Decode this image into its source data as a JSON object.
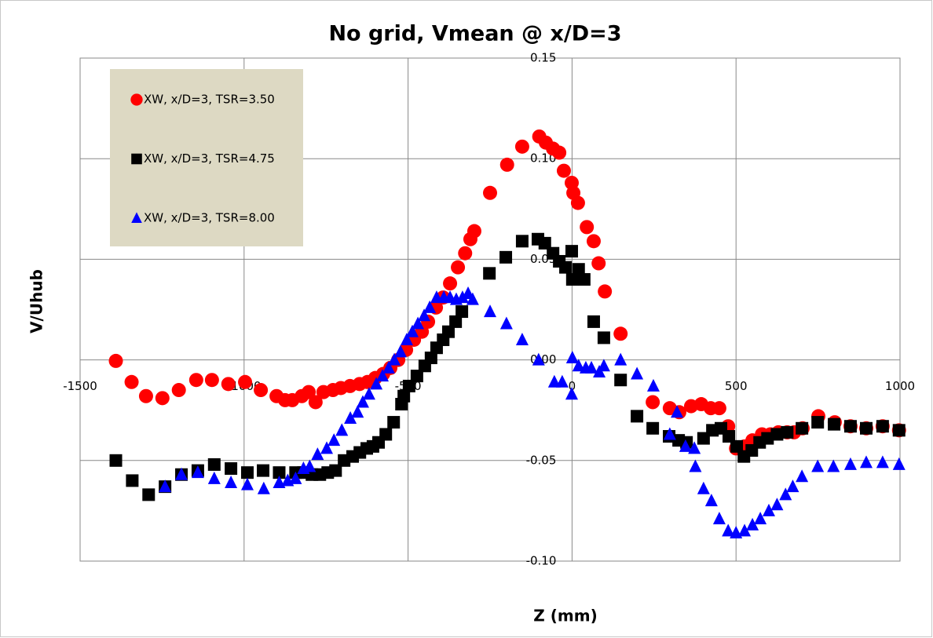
{
  "chart_data": {
    "type": "scatter",
    "title": "No grid, Vmean @ x/D=3",
    "x_label": "Z (mm)",
    "y_label": "V/Uhub",
    "xlim": [
      -1500,
      1000
    ],
    "xticks": [
      -1500,
      -1000,
      -500,
      0,
      500,
      1000
    ],
    "ylim": [
      -0.1,
      0.15
    ],
    "yticks": [
      {
        "value": -0.1,
        "label": "-0.10"
      },
      {
        "value": -0.05,
        "label": "-0.05"
      },
      {
        "value": 0,
        "label": "0.00"
      },
      {
        "value": 0.05,
        "label": "0.05"
      },
      {
        "value": 0.1,
        "label": "0.10"
      },
      0.15
    ],
    "grid": true,
    "legend": "upper left",
    "series": [
      {
        "name": "XW, x/D=3, TSR=3.50",
        "color": "#ff0000",
        "marker": "circle",
        "x": [
          -1391,
          -1343,
          -1299,
          -1249,
          -1199,
          -1146,
          -1098,
          -1048,
          -997,
          -949,
          -901,
          -875,
          -853,
          -824,
          -803,
          -782,
          -758,
          -729,
          -705,
          -677,
          -648,
          -624,
          -600,
          -576,
          -554,
          -530,
          -506,
          -482,
          -458,
          -439,
          -415,
          -393,
          -372,
          -348,
          -326,
          -310,
          -298,
          -250,
          -198,
          -152,
          -100,
          -80,
          -58,
          -39,
          -25,
          -1,
          4,
          18,
          45,
          66,
          81,
          100,
          148,
          246,
          298,
          327,
          363,
          394,
          423,
          449,
          476,
          500,
          526,
          550,
          579,
          605,
          629,
          656,
          677,
          703,
          751,
          801,
          849,
          897,
          947,
          997
        ],
        "values": [
          -0.0005,
          -0.011,
          -0.018,
          -0.019,
          -0.015,
          -0.01,
          -0.01,
          -0.012,
          -0.011,
          -0.015,
          -0.018,
          -0.02,
          -0.02,
          -0.018,
          -0.016,
          -0.021,
          -0.016,
          -0.015,
          -0.014,
          -0.013,
          -0.012,
          -0.011,
          -0.009,
          -0.007,
          -0.004,
          0,
          0.005,
          0.01,
          0.014,
          0.019,
          0.026,
          0.031,
          0.038,
          0.046,
          0.053,
          0.06,
          0.064,
          0.083,
          0.097,
          0.106,
          0.111,
          0.108,
          0.105,
          0.103,
          0.094,
          0.088,
          0.083,
          0.078,
          0.066,
          0.059,
          0.048,
          0.034,
          0.013,
          -0.021,
          -0.024,
          -0.026,
          -0.023,
          -0.022,
          -0.024,
          -0.024,
          -0.033,
          -0.044,
          -0.043,
          -0.04,
          -0.037,
          -0.037,
          -0.036,
          -0.036,
          -0.036,
          -0.034,
          -0.028,
          -0.031,
          -0.033,
          -0.034,
          -0.033,
          -0.035
        ]
      },
      {
        "name": "XW, x/D=3, TSR=4.75",
        "color": "#000000",
        "marker": "square",
        "x": [
          -1391,
          -1341,
          -1291,
          -1241,
          -1191,
          -1141,
          -1091,
          -1040,
          -990,
          -942,
          -893,
          -843,
          -819,
          -793,
          -769,
          -745,
          -721,
          -695,
          -669,
          -647,
          -626,
          -607,
          -590,
          -568,
          -544,
          -520,
          -513,
          -497,
          -473,
          -449,
          -430,
          -413,
          -393,
          -377,
          -355,
          -336,
          -252,
          -202,
          -152,
          -104,
          -83,
          -58,
          -39,
          -20,
          -1,
          1,
          20,
          37,
          66,
          97,
          148,
          198,
          246,
          296,
          325,
          349,
          401,
          428,
          454,
          478,
          502,
          524,
          548,
          572,
          596,
          625,
          656,
          701,
          749,
          799,
          849,
          897,
          947,
          997
        ],
        "values": [
          -0.05,
          -0.06,
          -0.067,
          -0.063,
          -0.057,
          -0.055,
          -0.052,
          -0.054,
          -0.056,
          -0.055,
          -0.056,
          -0.056,
          -0.056,
          -0.057,
          -0.057,
          -0.056,
          -0.055,
          -0.05,
          -0.048,
          -0.046,
          -0.044,
          -0.043,
          -0.041,
          -0.037,
          -0.031,
          -0.022,
          -0.018,
          -0.013,
          -0.008,
          -0.003,
          0.001,
          0.006,
          0.01,
          0.014,
          0.019,
          0.024,
          0.043,
          0.051,
          0.059,
          0.06,
          0.058,
          0.053,
          0.049,
          0.046,
          0.054,
          0.04,
          0.045,
          0.04,
          0.019,
          0.011,
          -0.01,
          -0.028,
          -0.034,
          -0.038,
          -0.04,
          -0.041,
          -0.039,
          -0.035,
          -0.034,
          -0.038,
          -0.043,
          -0.048,
          -0.045,
          -0.041,
          -0.039,
          -0.037,
          -0.036,
          -0.034,
          -0.031,
          -0.032,
          -0.033,
          -0.034,
          -0.033,
          -0.035
        ]
      },
      {
        "name": "XW, x/D=3, TSR=8.00",
        "color": "#0000ff",
        "marker": "triangle",
        "x": [
          -1241,
          -1191,
          -1141,
          -1091,
          -1040,
          -990,
          -940,
          -893,
          -867,
          -843,
          -819,
          -800,
          -776,
          -748,
          -726,
          -702,
          -676,
          -654,
          -638,
          -619,
          -597,
          -578,
          -559,
          -542,
          -523,
          -504,
          -487,
          -470,
          -451,
          -434,
          -413,
          -391,
          -372,
          -353,
          -334,
          -317,
          -303,
          -250,
          -200,
          -152,
          -102,
          -54,
          -30,
          -1,
          1,
          20,
          42,
          59,
          83,
          97,
          148,
          198,
          248,
          298,
          320,
          346,
          373,
          376,
          401,
          425,
          449,
          476,
          500,
          526,
          550,
          574,
          600,
          625,
          651,
          673,
          701,
          749,
          797,
          849,
          897,
          947,
          997
        ],
        "values": [
          -0.063,
          -0.057,
          -0.056,
          -0.059,
          -0.061,
          -0.062,
          -0.064,
          -0.061,
          -0.06,
          -0.059,
          -0.054,
          -0.053,
          -0.047,
          -0.044,
          -0.04,
          -0.035,
          -0.029,
          -0.026,
          -0.021,
          -0.017,
          -0.012,
          -0.008,
          -0.004,
          0,
          0.004,
          0.01,
          0.014,
          0.018,
          0.022,
          0.026,
          0.031,
          0.031,
          0.031,
          0.03,
          0.031,
          0.033,
          0.03,
          0.024,
          0.018,
          0.01,
          0,
          -0.011,
          -0.011,
          -0.017,
          0.001,
          -0.003,
          -0.004,
          -0.004,
          -0.006,
          -0.003,
          0,
          -0.007,
          -0.013,
          -0.037,
          -0.026,
          -0.043,
          -0.044,
          -0.053,
          -0.064,
          -0.07,
          -0.079,
          -0.085,
          -0.086,
          -0.085,
          -0.082,
          -0.079,
          -0.075,
          -0.072,
          -0.067,
          -0.063,
          -0.058,
          -0.053,
          -0.053,
          -0.052,
          -0.051,
          -0.051,
          -0.052
        ]
      }
    ]
  }
}
